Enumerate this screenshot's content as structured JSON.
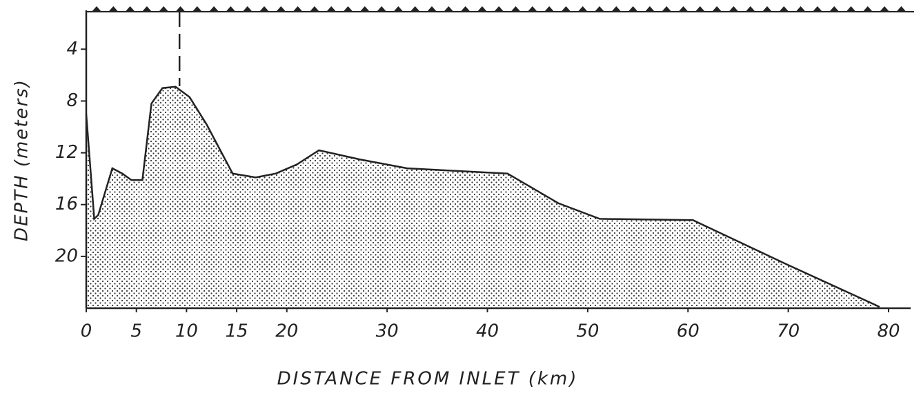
{
  "chart_data": {
    "type": "area",
    "x_label": "DISTANCE FROM INLET (km)",
    "y_label": "DEPTH (meters)",
    "x": [
      0,
      0.8,
      1.2,
      2.6,
      3.6,
      4.5,
      5.6,
      6.5,
      7.6,
      8.9,
      10.3,
      12.0,
      14.6,
      16.9,
      18.9,
      21.0,
      23.2,
      27.2,
      32.0,
      42.0,
      47.1,
      51.2,
      60.5,
      69.8,
      79.1
    ],
    "values": [
      9.0,
      17.1,
      16.8,
      13.2,
      13.6,
      14.1,
      14.1,
      8.2,
      7.0,
      6.9,
      7.7,
      9.8,
      13.6,
      13.9,
      13.6,
      12.9,
      11.8,
      12.5,
      13.2,
      13.6,
      15.9,
      17.1,
      17.2,
      20.6,
      23.9
    ],
    "color": "#222222",
    "xlim": [
      0,
      80
    ],
    "xticks": [
      0,
      5,
      10,
      15,
      20,
      30,
      40,
      50,
      60,
      70,
      80
    ],
    "ylim": [
      1,
      24
    ],
    "yticks": [
      4,
      8,
      12,
      16,
      20
    ],
    "y_inverted": true,
    "marker_x": 9.3
  }
}
